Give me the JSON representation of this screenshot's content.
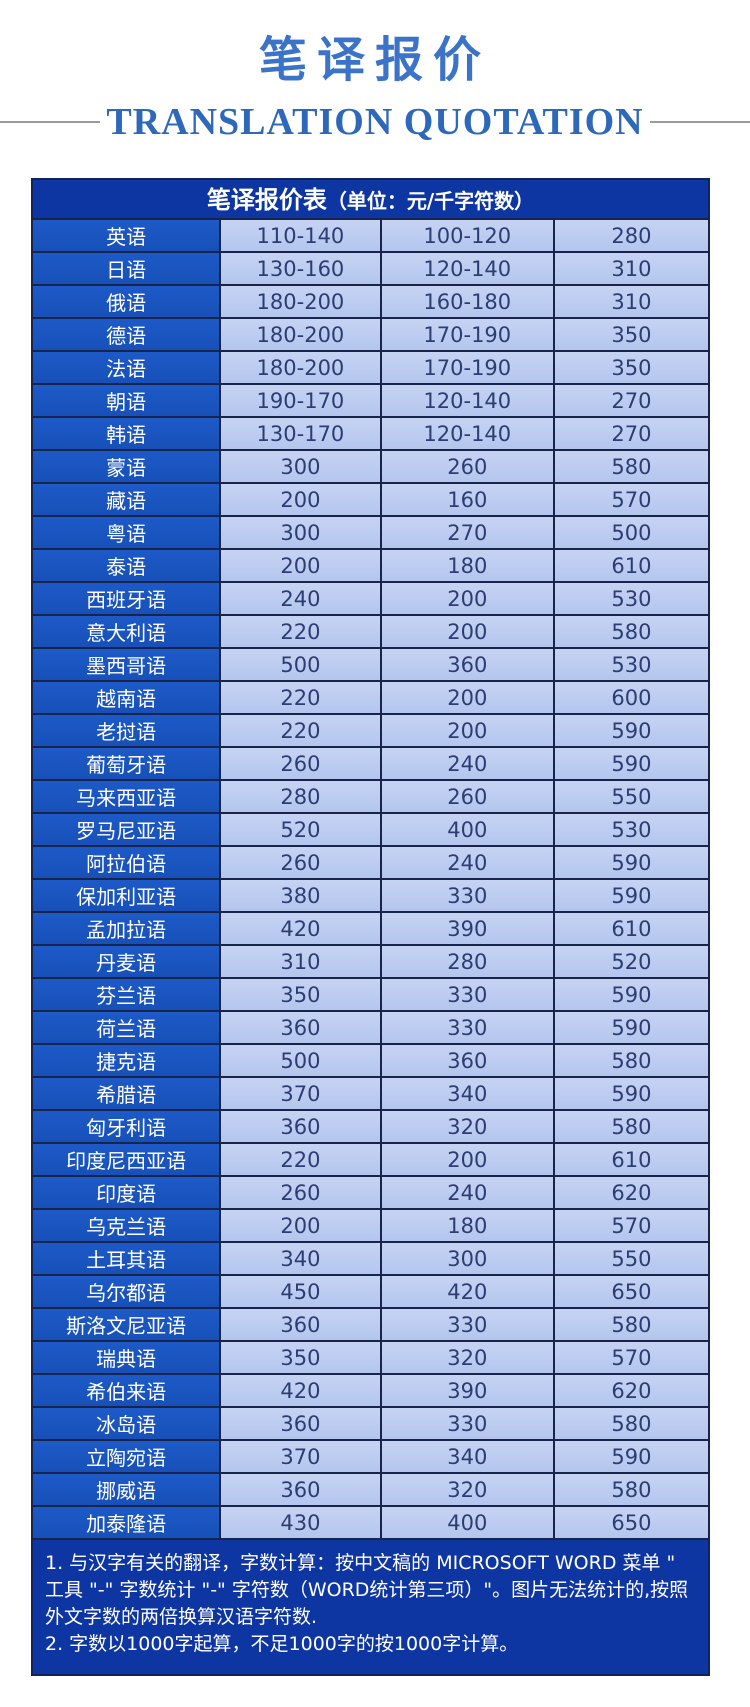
{
  "page": {
    "title": "笔译报价",
    "subtitle": "TRANSLATION QUOTATION"
  },
  "table": {
    "header_title": "笔译报价表",
    "header_unit": "（单位：元/千字符数）",
    "rows": [
      {
        "language": "英语",
        "prices": [
          "110-140",
          "100-120",
          "280"
        ]
      },
      {
        "language": "日语",
        "prices": [
          "130-160",
          "120-140",
          "310"
        ]
      },
      {
        "language": "俄语",
        "prices": [
          "180-200",
          "160-180",
          "310"
        ]
      },
      {
        "language": "德语",
        "prices": [
          "180-200",
          "170-190",
          "350"
        ]
      },
      {
        "language": "法语",
        "prices": [
          "180-200",
          "170-190",
          "350"
        ]
      },
      {
        "language": "朝语",
        "prices": [
          "190-170",
          "120-140",
          "270"
        ]
      },
      {
        "language": "韩语",
        "prices": [
          "130-170",
          "120-140",
          "270"
        ]
      },
      {
        "language": "蒙语",
        "prices": [
          "300",
          "260",
          "580"
        ]
      },
      {
        "language": "藏语",
        "prices": [
          "200",
          "160",
          "570"
        ]
      },
      {
        "language": "粤语",
        "prices": [
          "300",
          "270",
          "500"
        ]
      },
      {
        "language": "泰语",
        "prices": [
          "200",
          "180",
          "610"
        ]
      },
      {
        "language": "西班牙语",
        "prices": [
          "240",
          "200",
          "530"
        ]
      },
      {
        "language": "意大利语",
        "prices": [
          "220",
          "200",
          "580"
        ]
      },
      {
        "language": "墨西哥语",
        "prices": [
          "500",
          "360",
          "530"
        ]
      },
      {
        "language": "越南语",
        "prices": [
          "220",
          "200",
          "600"
        ]
      },
      {
        "language": "老挝语",
        "prices": [
          "220",
          "200",
          "590"
        ]
      },
      {
        "language": "葡萄牙语",
        "prices": [
          "260",
          "240",
          "590"
        ]
      },
      {
        "language": "马来西亚语",
        "prices": [
          "280",
          "260",
          "550"
        ]
      },
      {
        "language": "罗马尼亚语",
        "prices": [
          "520",
          "400",
          "530"
        ]
      },
      {
        "language": "阿拉伯语",
        "prices": [
          "260",
          "240",
          "590"
        ]
      },
      {
        "language": "保加利亚语",
        "prices": [
          "380",
          "330",
          "590"
        ]
      },
      {
        "language": "孟加拉语",
        "prices": [
          "420",
          "390",
          "610"
        ]
      },
      {
        "language": "丹麦语",
        "prices": [
          "310",
          "280",
          "520"
        ]
      },
      {
        "language": "芬兰语",
        "prices": [
          "350",
          "330",
          "590"
        ]
      },
      {
        "language": "荷兰语",
        "prices": [
          "360",
          "330",
          "590"
        ]
      },
      {
        "language": "捷克语",
        "prices": [
          "500",
          "360",
          "580"
        ]
      },
      {
        "language": "希腊语",
        "prices": [
          "370",
          "340",
          "590"
        ]
      },
      {
        "language": "匈牙利语",
        "prices": [
          "360",
          "320",
          "580"
        ]
      },
      {
        "language": "印度尼西亚语",
        "prices": [
          "220",
          "200",
          "610"
        ]
      },
      {
        "language": "印度语",
        "prices": [
          "260",
          "240",
          "620"
        ]
      },
      {
        "language": "乌克兰语",
        "prices": [
          "200",
          "180",
          "570"
        ]
      },
      {
        "language": "土耳其语",
        "prices": [
          "340",
          "300",
          "550"
        ]
      },
      {
        "language": "乌尔都语",
        "prices": [
          "450",
          "420",
          "650"
        ]
      },
      {
        "language": "斯洛文尼亚语",
        "prices": [
          "360",
          "330",
          "580"
        ]
      },
      {
        "language": "瑞典语",
        "prices": [
          "350",
          "320",
          "570"
        ]
      },
      {
        "language": "希伯来语",
        "prices": [
          "420",
          "390",
          "620"
        ]
      },
      {
        "language": "冰岛语",
        "prices": [
          "360",
          "330",
          "580"
        ]
      },
      {
        "language": "立陶宛语",
        "prices": [
          "370",
          "340",
          "590"
        ]
      },
      {
        "language": "挪威语",
        "prices": [
          "360",
          "320",
          "580"
        ]
      },
      {
        "language": "加泰隆语",
        "prices": [
          "430",
          "400",
          "650"
        ]
      }
    ]
  },
  "notes": [
    "1. 与汉字有关的翻译，字数计算：按中文稿的 MICROSOFT WORD 菜单 \" 工具 \"-\" 字数统计 \"-\" 字符数（WORD统计第三项）\"。图片无法统计的,按照外文字数的两倍换算汉语字符数.",
    "2. 字数以1000字起算，不足1000字的按1000字计算。"
  ],
  "colors": {
    "title_blue": "#3b73c9",
    "subtitle_blue": "#2d68ba",
    "divider_gray": "#9b9b9b",
    "table_header_bg": "#0e36a3",
    "language_cell_bg": "#1a54bd",
    "price_cell_bg": "#b9c9ef",
    "price_text": "#2b3d72",
    "cell_border": "#18244a",
    "notes_bg": "#0e36a3"
  }
}
